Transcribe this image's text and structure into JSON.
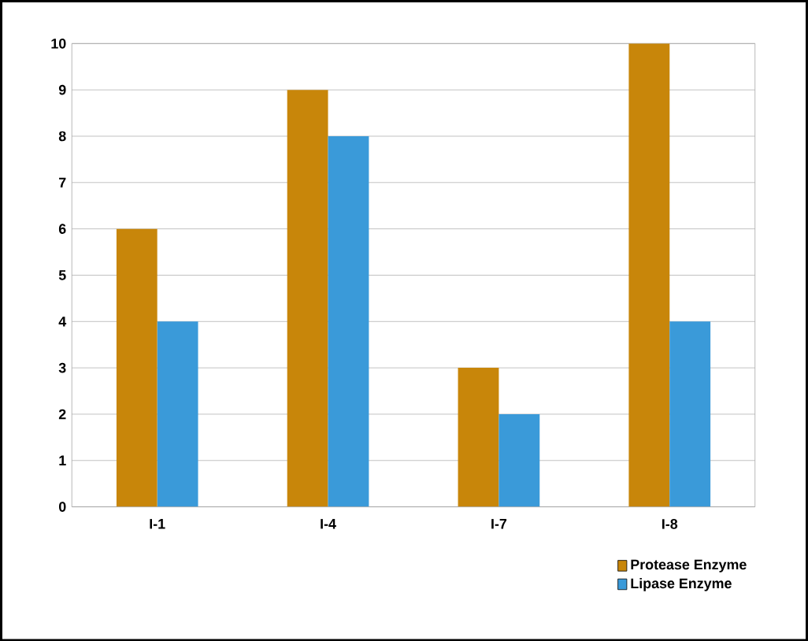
{
  "chart_data": {
    "type": "bar",
    "categories": [
      "I-1",
      "I-4",
      "I-7",
      "I-8"
    ],
    "series": [
      {
        "name": "Protease Enzyme",
        "color": "#c8860a",
        "values": [
          6,
          9,
          3,
          10
        ]
      },
      {
        "name": "Lipase Enzyme",
        "color": "#3a9ad9",
        "values": [
          4,
          8,
          2,
          4
        ]
      }
    ],
    "ylim": [
      0,
      10
    ],
    "yticks": [
      0,
      1,
      2,
      3,
      4,
      5,
      6,
      7,
      8,
      9,
      10
    ],
    "grid": "y",
    "legend": "bottom right"
  }
}
